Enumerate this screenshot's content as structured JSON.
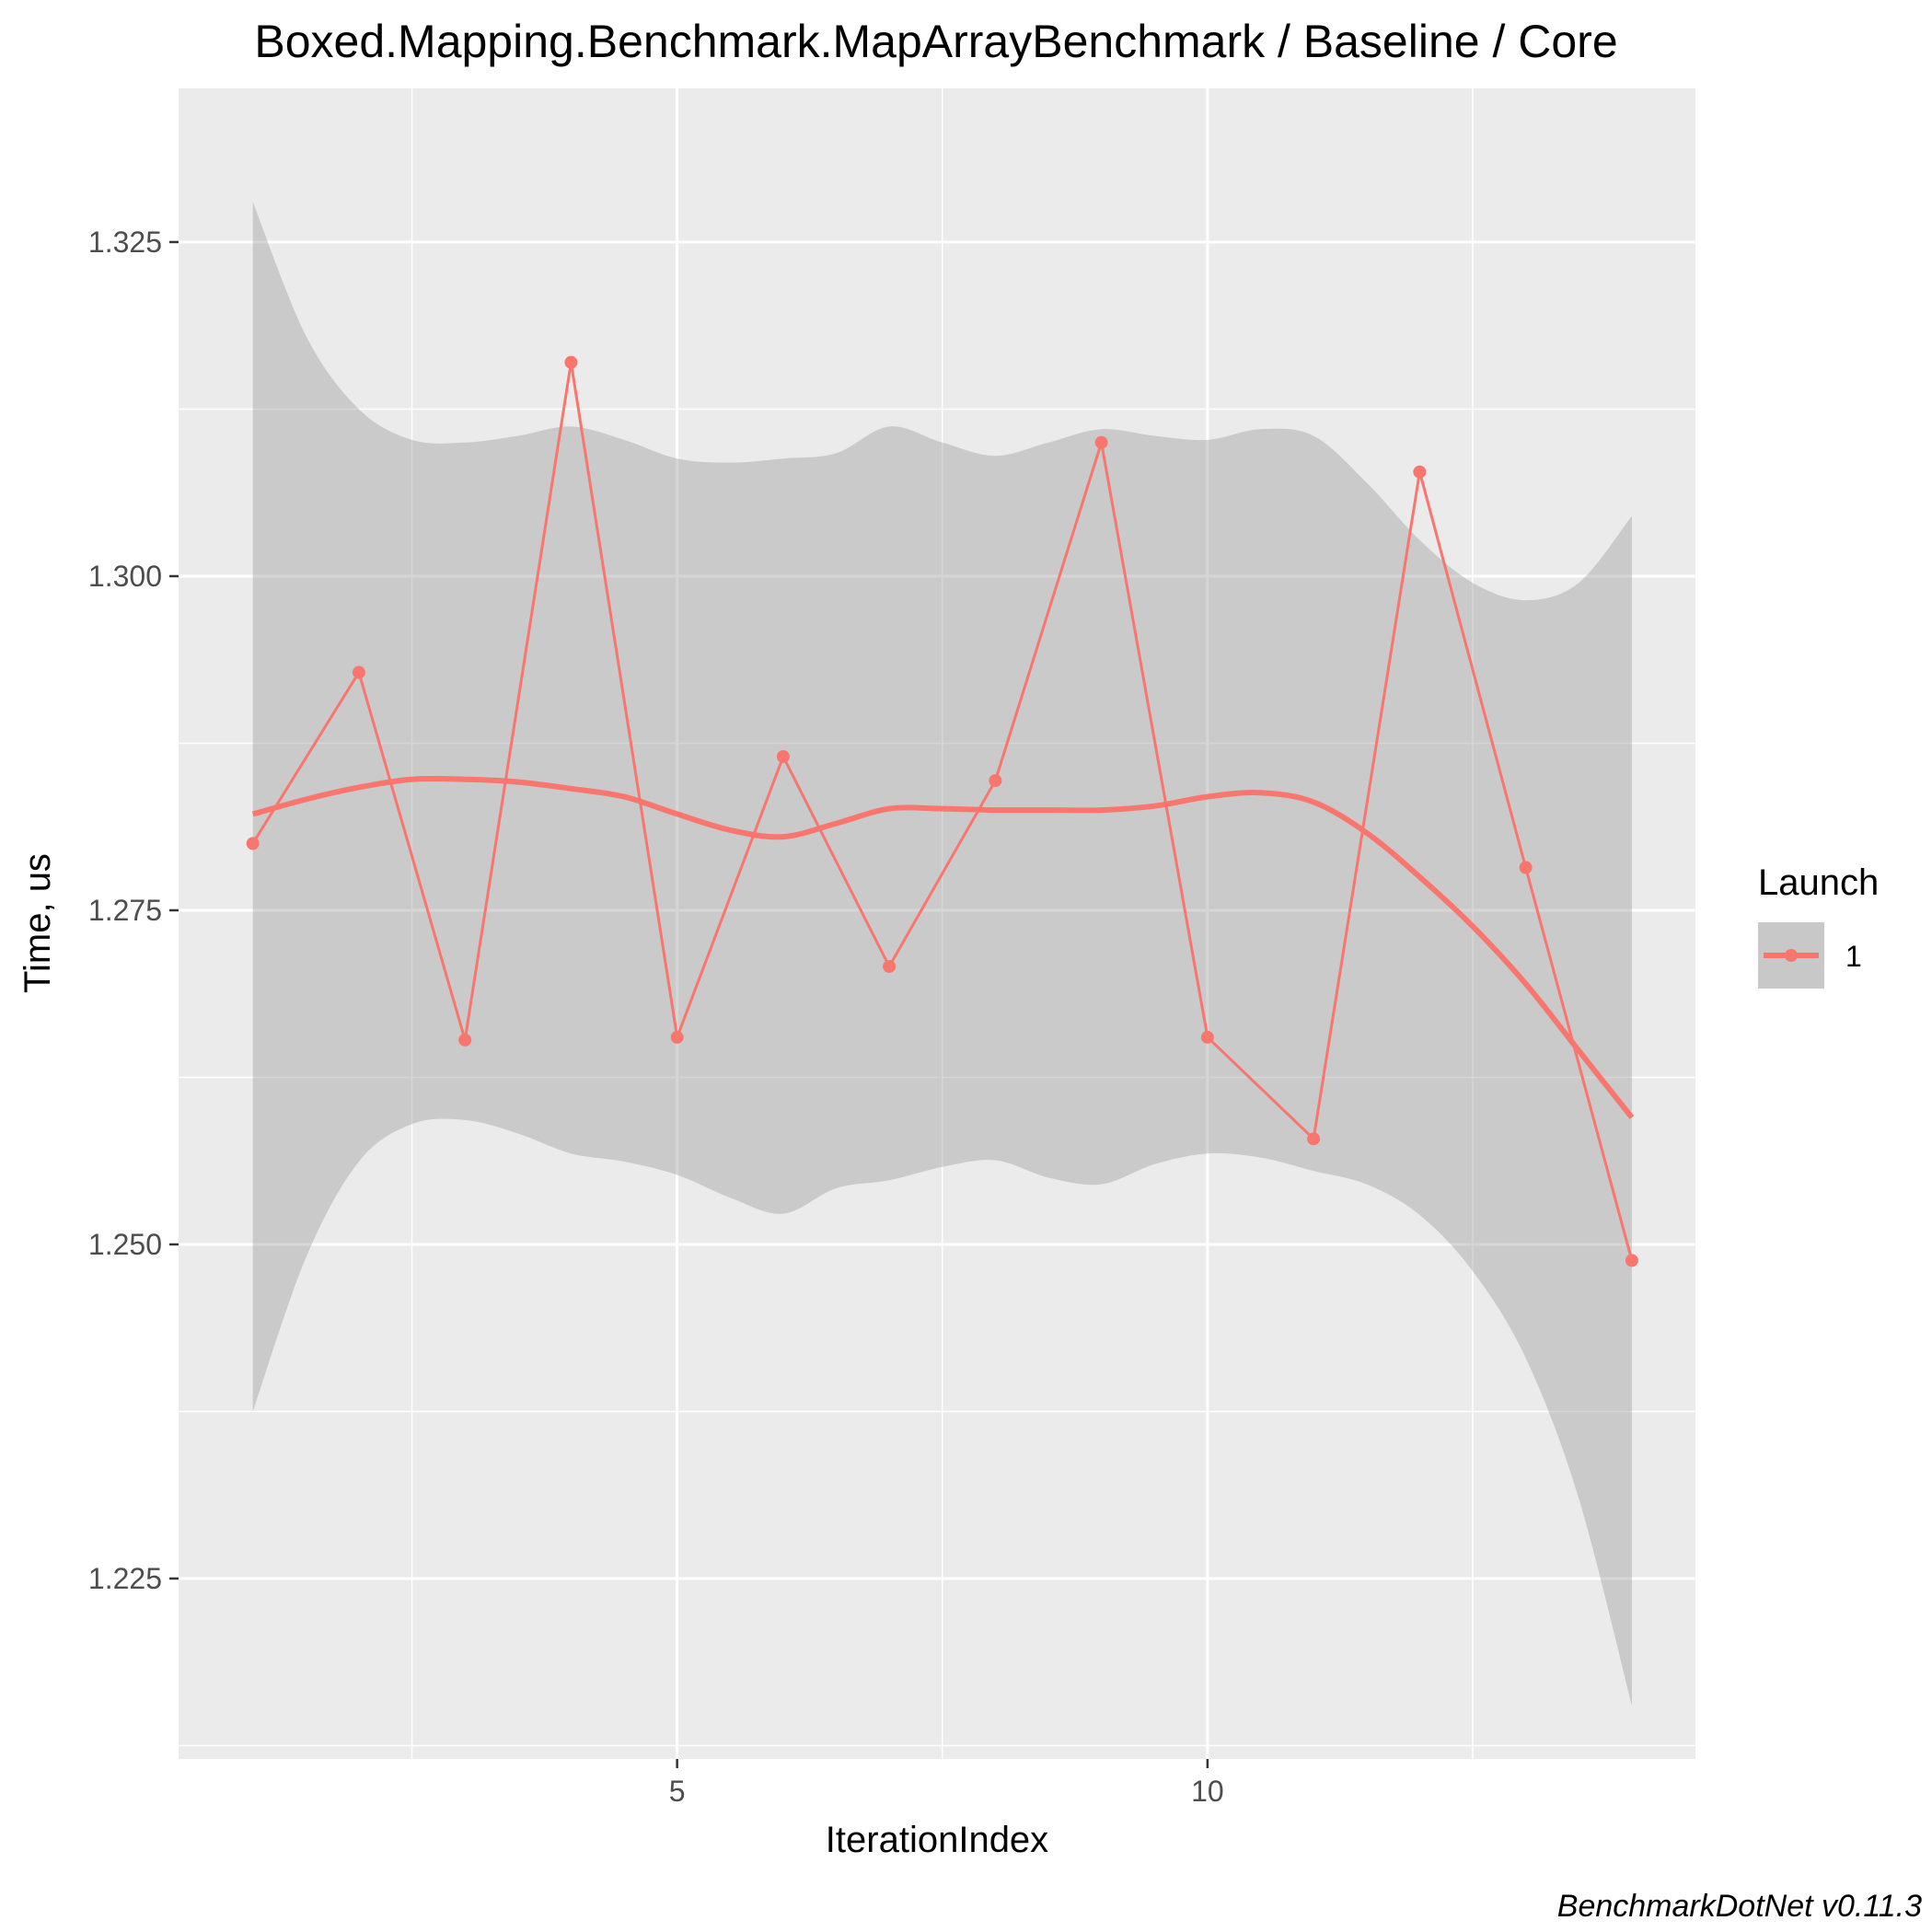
{
  "chart_data": {
    "type": "line",
    "title": "Boxed.Mapping.Benchmark.MapArrayBenchmark / Baseline / Core",
    "xlabel": "IterationIndex",
    "ylabel": "Time, us",
    "caption": "BenchmarkDotNet v0.11.3",
    "xlim": [
      0.3,
      14.6
    ],
    "ylim": [
      1.2115,
      1.3365
    ],
    "x_ticks": [
      5,
      10
    ],
    "y_ticks": [
      1.225,
      1.25,
      1.275,
      1.3,
      1.325
    ],
    "y_tick_labels": [
      "1.225",
      "1.250",
      "1.275",
      "1.300",
      "1.325"
    ],
    "grid": true,
    "legend": {
      "title": "Launch",
      "position": "right",
      "entries": [
        "1"
      ]
    },
    "colors": {
      "series": "#f8766d",
      "ribbon": "#c8c8c8",
      "panel": "#ebebeb",
      "grid": "#ffffff"
    },
    "series": [
      {
        "name": "1",
        "x": [
          1,
          2,
          3,
          4,
          5,
          6,
          7,
          8,
          9,
          10,
          11,
          12,
          13,
          14
        ],
        "values": [
          1.28,
          1.2928,
          1.2653,
          1.316,
          1.2655,
          1.2865,
          1.2708,
          1.2847,
          1.31,
          1.2655,
          1.2579,
          1.3078,
          1.2782,
          1.2488
        ]
      }
    ],
    "smooth": {
      "x": [
        1,
        1.5,
        2,
        2.5,
        3,
        3.5,
        4,
        4.5,
        5,
        5.5,
        6,
        6.5,
        7,
        7.5,
        8,
        8.5,
        9,
        9.5,
        10,
        10.5,
        11,
        11.5,
        12,
        12.5,
        13,
        13.5,
        14
      ],
      "fit": [
        1.2822,
        1.2833,
        1.2842,
        1.2848,
        1.2848,
        1.2846,
        1.2841,
        1.2835,
        1.2822,
        1.281,
        1.2805,
        1.2815,
        1.2826,
        1.2826,
        1.2825,
        1.2825,
        1.2825,
        1.2828,
        1.2835,
        1.2838,
        1.2831,
        1.2808,
        1.2775,
        1.2738,
        1.2695,
        1.2645,
        1.2595
      ],
      "lower": [
        1.2375,
        1.249,
        1.2562,
        1.259,
        1.2593,
        1.2583,
        1.2568,
        1.2562,
        1.2552,
        1.2535,
        1.2523,
        1.2542,
        1.2548,
        1.2558,
        1.2563,
        1.255,
        1.2545,
        1.256,
        1.2568,
        1.2565,
        1.2555,
        1.2545,
        1.2522,
        1.248,
        1.2415,
        1.231,
        1.2155
      ],
      "upper": [
        1.328,
        1.318,
        1.3125,
        1.3102,
        1.31,
        1.3105,
        1.3112,
        1.3102,
        1.3088,
        1.3085,
        1.3088,
        1.3092,
        1.3112,
        1.31,
        1.309,
        1.31,
        1.311,
        1.3105,
        1.3102,
        1.311,
        1.3105,
        1.307,
        1.3027,
        1.2995,
        1.2982,
        1.2995,
        1.3045
      ]
    }
  }
}
